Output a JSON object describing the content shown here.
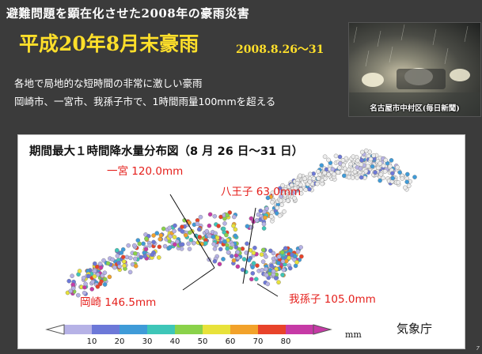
{
  "slide": {
    "pre_title": "避難問題を顕在化させた2008年の豪雨災害",
    "main_title": "平成20年8月末豪雨",
    "date_range": "2008.8.26〜31",
    "description_lines": [
      "各地で局地的な短時間の非常に激しい豪雨",
      "岡崎市、一宮市、我孫子市で、1時間雨量100mmを超える"
    ],
    "photo_caption": "名古屋市中村区(毎日新聞)",
    "slide_number": "7"
  },
  "map": {
    "title": "期間最大１時間降水量分布図（8 月 26 日〜31 日）",
    "callouts": [
      {
        "label": "一宮 120.0mm"
      },
      {
        "label": "八王子 63.0mm"
      },
      {
        "label": "岡崎 146.5mm"
      },
      {
        "label": "我孫子 105.0mm"
      }
    ],
    "agency": "気象庁",
    "legend": {
      "ticks": [
        "10",
        "20",
        "30",
        "40",
        "50",
        "60",
        "70",
        "80"
      ],
      "unit": "mm",
      "colors": [
        "#b6b2e6",
        "#6c78d8",
        "#3f9bd8",
        "#3ec6b8",
        "#8ad24a",
        "#e8e23a",
        "#f2a22a",
        "#e8432a",
        "#c63aa6"
      ]
    },
    "accent_color": "#e5201c"
  }
}
